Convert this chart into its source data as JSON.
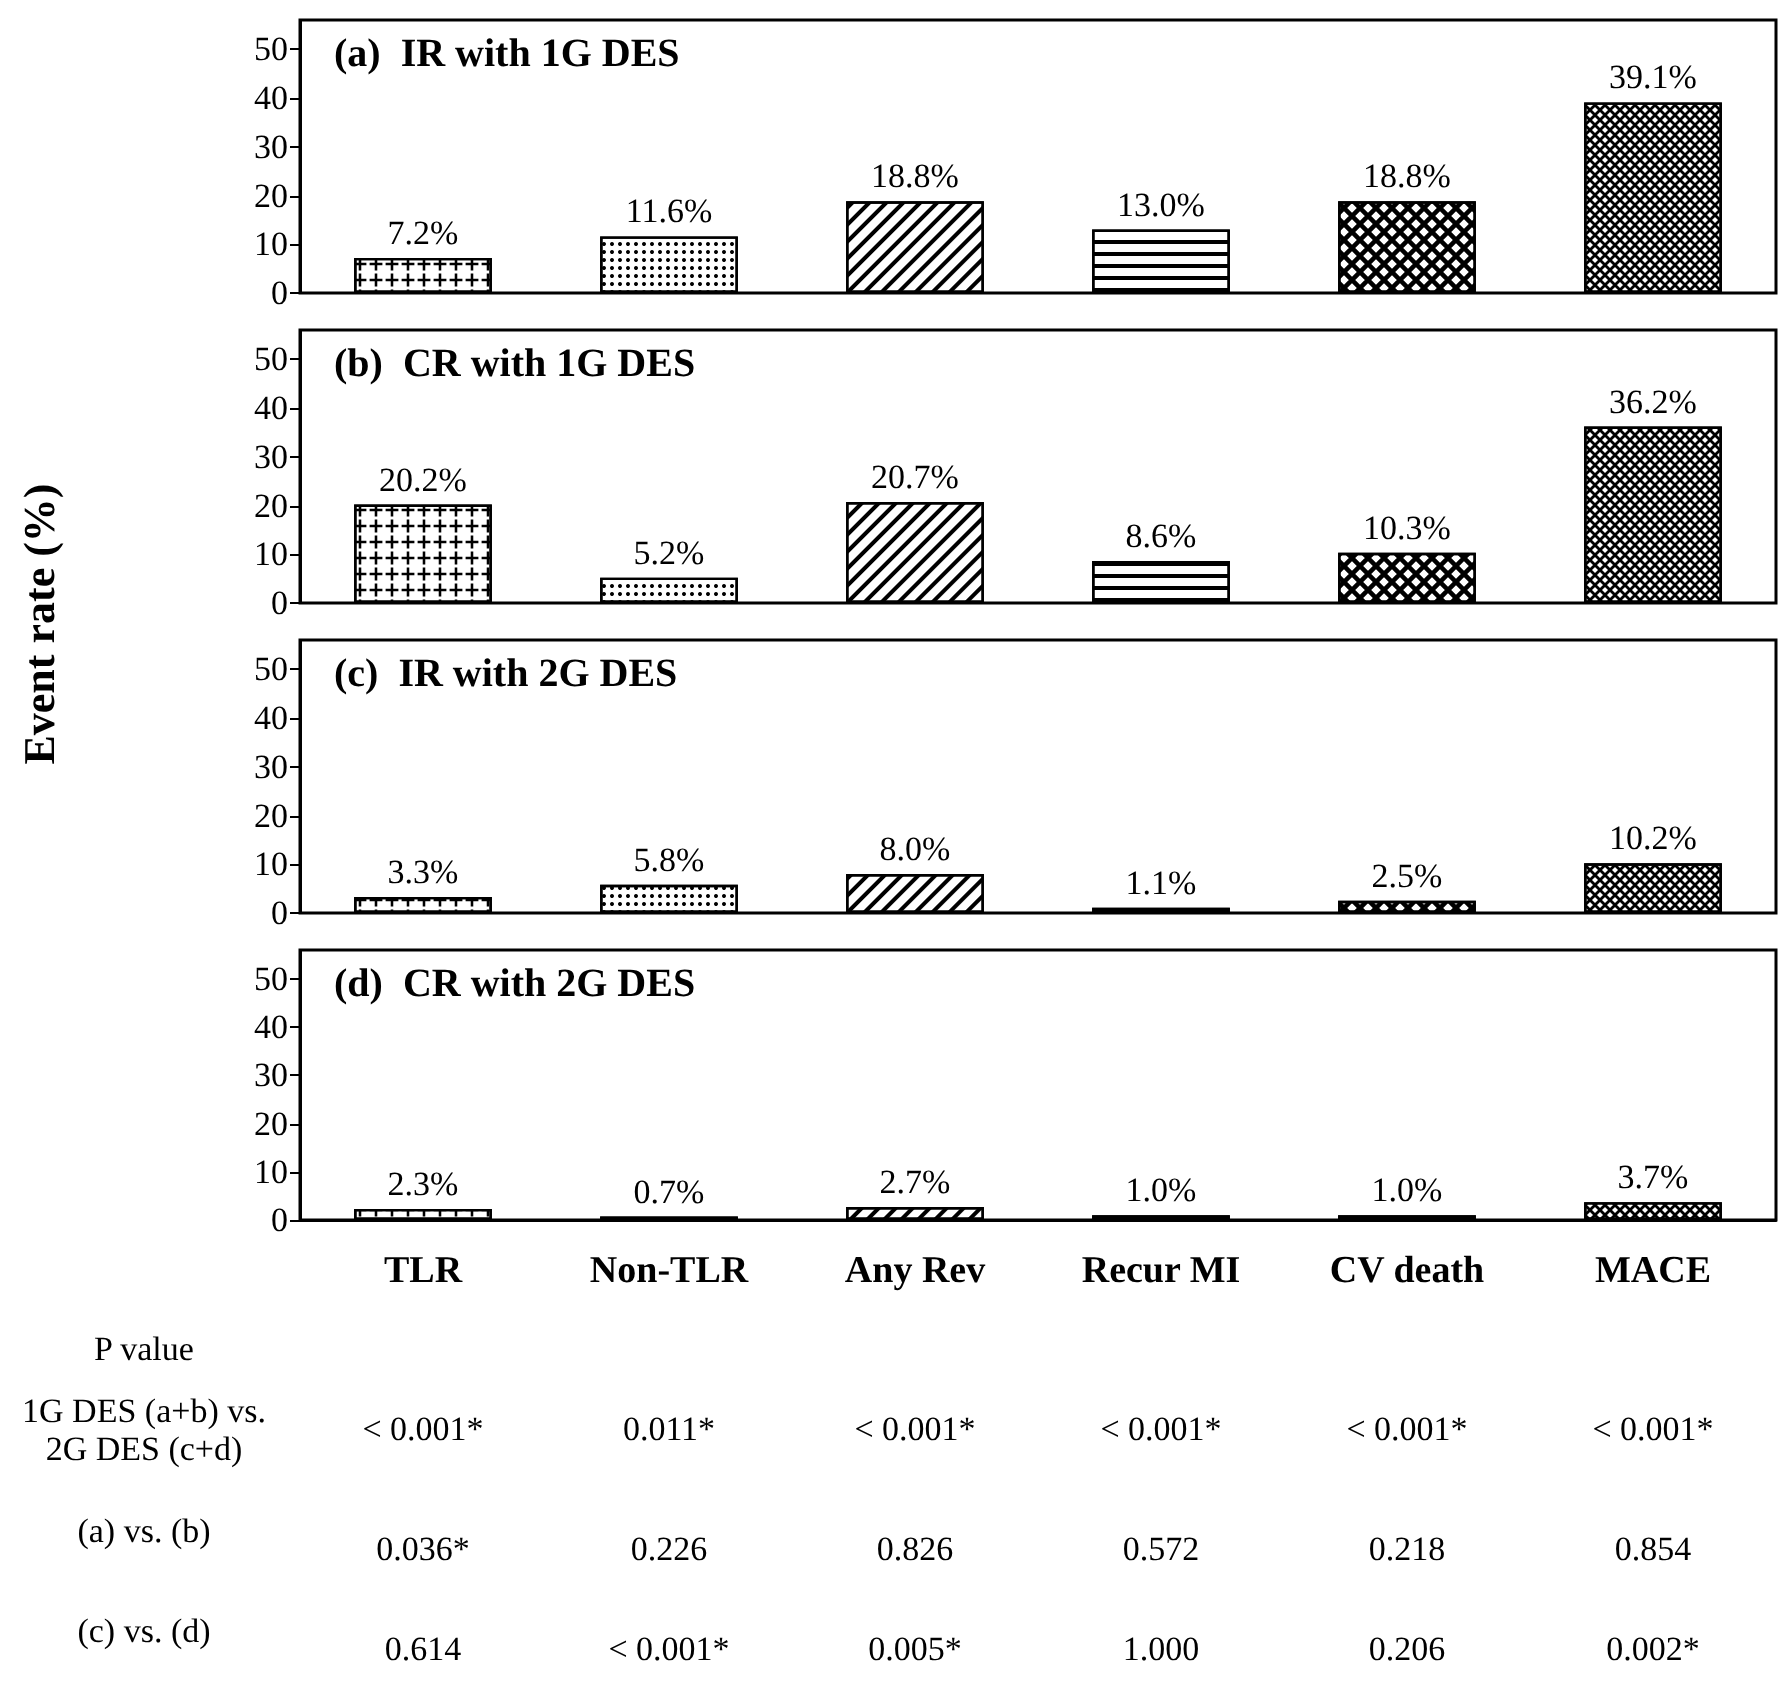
{
  "chart_data": [
    {
      "type": "bar",
      "title": "(a)  IR with 1G DES",
      "ylabel": "Event rate (%)",
      "categories": [
        null,
        null,
        null,
        null,
        null,
        null
      ],
      "values": [
        7.2,
        11.6,
        18.8,
        13.0,
        18.8,
        39.1
      ],
      "value_labels": [
        "7.2%",
        "11.6%",
        "18.8%",
        "13.0%",
        "18.8%",
        "39.1%"
      ],
      "color": "#ffffff",
      "ylim": [
        0,
        56
      ],
      "yticks": [
        0,
        10,
        20,
        30,
        40,
        50
      ],
      "tick_labels": "y"
    },
    {
      "type": "bar",
      "title": "(b)  CR with 1G DES",
      "categories": [
        null,
        null,
        null,
        null,
        null,
        null
      ],
      "values": [
        20.2,
        5.2,
        20.7,
        8.6,
        10.3,
        36.2
      ],
      "value_labels": [
        "20.2%",
        "5.2%",
        "20.7%",
        "8.6%",
        "10.3%",
        "36.2%"
      ],
      "color": "#ffffff",
      "ylim": [
        0,
        56
      ],
      "yticks": [
        0,
        10,
        20,
        30,
        40,
        50
      ],
      "tick_labels": "y"
    },
    {
      "type": "bar",
      "title": "(c)  IR with 2G DES",
      "categories": [
        null,
        null,
        null,
        null,
        null,
        null
      ],
      "values": [
        3.3,
        5.8,
        8.0,
        1.1,
        2.5,
        10.2
      ],
      "value_labels": [
        "3.3%",
        "5.8%",
        "8.0%",
        "1.1%",
        "2.5%",
        "10.2%"
      ],
      "color": "#ffffff",
      "ylim": [
        0,
        56
      ],
      "yticks": [
        0,
        10,
        20,
        30,
        40,
        50
      ],
      "tick_labels": "y"
    },
    {
      "type": "bar",
      "title": "(d)  CR with 2G DES",
      "categories": [
        "TLR",
        "Non-TLR",
        "Any Rev",
        "Recur MI",
        "CV death",
        "MACE"
      ],
      "values": [
        2.3,
        0.7,
        2.7,
        1.0,
        1.0,
        3.7
      ],
      "value_labels": [
        "2.3%",
        "0.7%",
        "2.7%",
        "1.0%",
        "1.0%",
        "3.7%"
      ],
      "color": "#ffffff",
      "ylim": [
        0,
        56
      ],
      "yticks": [
        0,
        10,
        20,
        30,
        40,
        50
      ],
      "annotations": [
        "P value",
        "1G DES (a+b) vs. 2G DES (c+d)",
        "< 0.001*",
        "0.011*",
        "< 0.001*",
        "< 0.001*",
        "< 0.001*",
        "< 0.001*",
        "(a) vs. (b)",
        "0.036*",
        "0.226",
        "0.826",
        "0.572",
        "0.218",
        "0.854",
        "(c) vs. (d)",
        "0.614",
        "< 0.001*",
        "0.005*",
        "1.000",
        "0.206",
        "0.002*"
      ]
    }
  ]
}
